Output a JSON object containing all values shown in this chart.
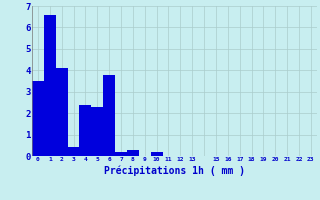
{
  "values": [
    3.5,
    6.6,
    4.1,
    0.4,
    2.4,
    2.3,
    3.8,
    0.2,
    0.3,
    0.0,
    0.2,
    0.0,
    0.0,
    0.0,
    0.0,
    0.0,
    0.0,
    0.0,
    0.0,
    0.0,
    0.0,
    0.0,
    0.0,
    0.0
  ],
  "bar_color": "#0000dd",
  "background_color": "#c8eef0",
  "grid_color": "#aacccc",
  "xlabel": "Précipitations 1h ( mm )",
  "xlabel_color": "#0000cc",
  "tick_color": "#0000cc",
  "ylim": [
    0,
    7
  ],
  "yticks": [
    0,
    1,
    2,
    3,
    4,
    5,
    6,
    7
  ],
  "xtick_labels": [
    "0",
    "1",
    "2",
    "3",
    "4",
    "5",
    "6",
    "7",
    "8",
    "9",
    "10",
    "11",
    "12",
    "13",
    "",
    "15",
    "16",
    "17",
    "18",
    "19",
    "20",
    "21",
    "22",
    "23"
  ],
  "bar_width": 1.0,
  "n_bars": 24
}
